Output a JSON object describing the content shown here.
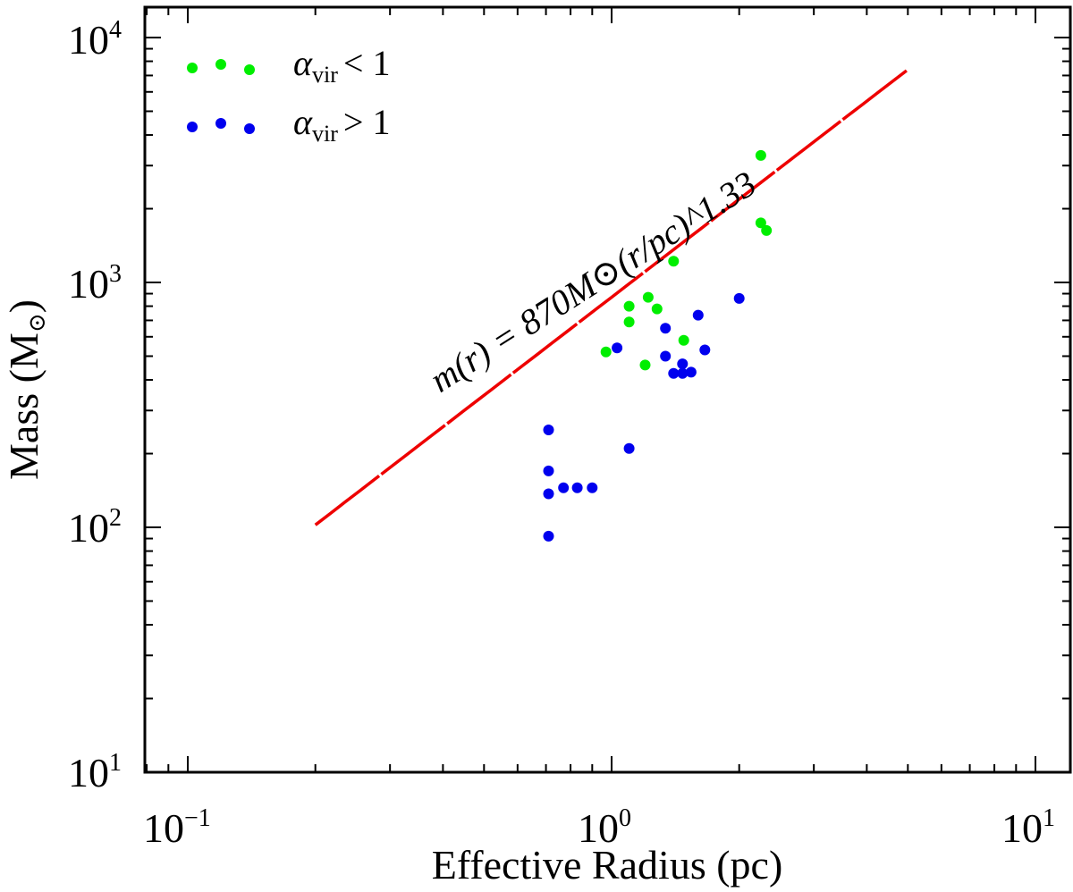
{
  "chart_data": {
    "type": "scatter",
    "xscale": "log",
    "yscale": "log",
    "xlim": [
      0.08,
      12
    ],
    "ylim": [
      10,
      13000
    ],
    "xlabel": "Effective Radius (pc)",
    "ylabel": {
      "base": "Mass (M",
      "sub": "⊙",
      "close": ")"
    },
    "x_ticks": [
      {
        "value": 0.1,
        "base": "10",
        "exp": "−1"
      },
      {
        "value": 1,
        "base": "10",
        "exp": "0"
      },
      {
        "value": 10,
        "base": "10",
        "exp": "1"
      }
    ],
    "y_ticks": [
      {
        "value": 10,
        "base": "10",
        "exp": "1"
      },
      {
        "value": 100,
        "base": "10",
        "exp": "2"
      },
      {
        "value": 1000,
        "base": "10",
        "exp": "3"
      },
      {
        "value": 10000,
        "base": "10",
        "exp": "4"
      }
    ],
    "grid": false,
    "legend_position": "top-left",
    "series": [
      {
        "name": "α_vir < 1",
        "legend": {
          "symbol": "α",
          "sub": "vir",
          "rel": "< 1"
        },
        "color": "#00ee00",
        "points": [
          [
            0.97,
            520
          ],
          [
            1.1,
            800
          ],
          [
            1.1,
            690
          ],
          [
            1.2,
            460
          ],
          [
            1.22,
            870
          ],
          [
            1.28,
            780
          ],
          [
            1.4,
            1220
          ],
          [
            1.48,
            580
          ],
          [
            2.25,
            3300
          ],
          [
            2.25,
            1750
          ],
          [
            2.32,
            1630
          ]
        ]
      },
      {
        "name": "α_vir > 1",
        "legend": {
          "symbol": "α",
          "sub": "vir",
          "rel": "> 1"
        },
        "color": "#0000ee",
        "points": [
          [
            0.71,
            250
          ],
          [
            0.71,
            170
          ],
          [
            0.71,
            137
          ],
          [
            0.71,
            92
          ],
          [
            0.77,
            145
          ],
          [
            0.83,
            145
          ],
          [
            0.9,
            145
          ],
          [
            1.03,
            540
          ],
          [
            1.1,
            210
          ],
          [
            1.34,
            650
          ],
          [
            1.34,
            500
          ],
          [
            1.4,
            425
          ],
          [
            1.47,
            465
          ],
          [
            1.47,
            425
          ],
          [
            1.54,
            430
          ],
          [
            1.6,
            735
          ],
          [
            1.66,
            530
          ],
          [
            2.0,
            860
          ]
        ]
      }
    ],
    "fit_line": {
      "label": "m(r) = 870M⊙(r/pc)^1.33",
      "coefficient": 870,
      "exponent": 1.33,
      "x_range": [
        0.2,
        5
      ],
      "color": "#ee0000"
    }
  }
}
